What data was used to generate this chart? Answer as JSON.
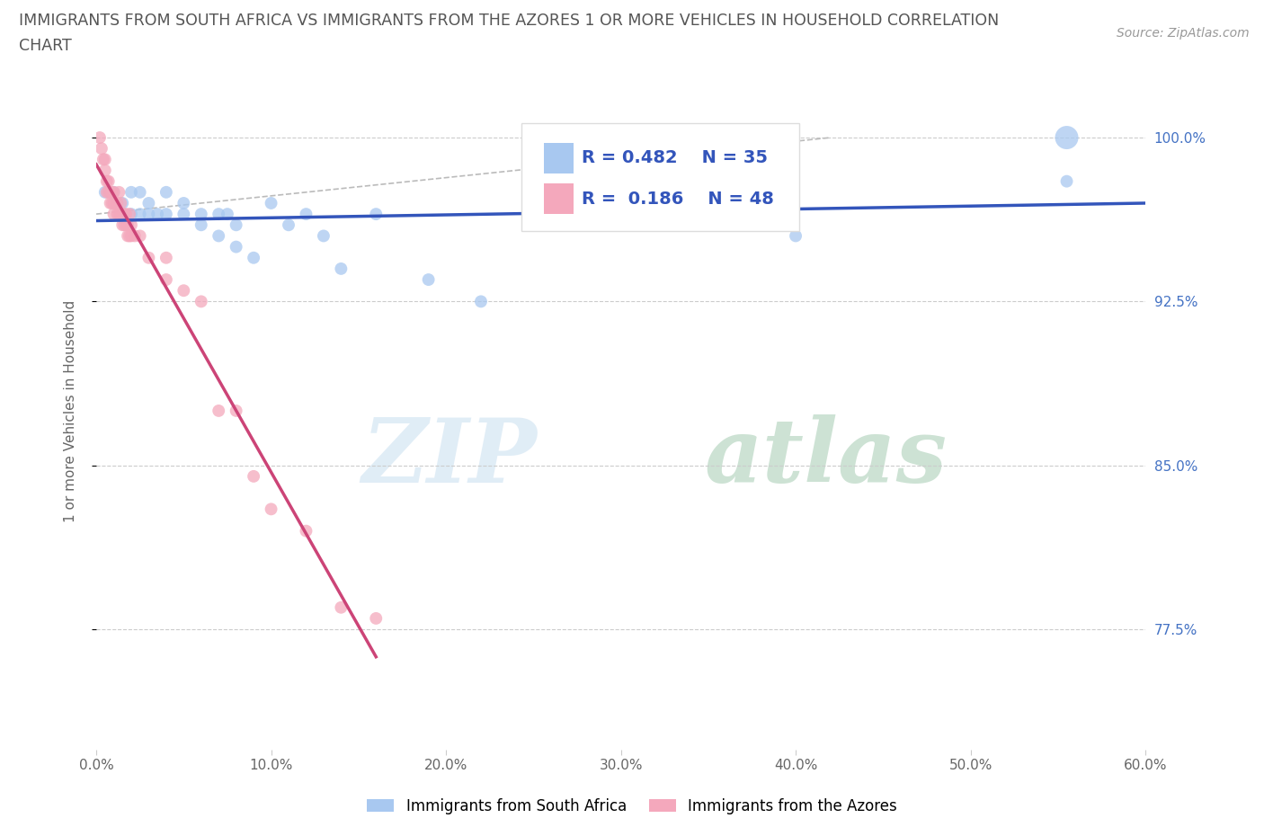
{
  "title_line1": "IMMIGRANTS FROM SOUTH AFRICA VS IMMIGRANTS FROM THE AZORES 1 OR MORE VEHICLES IN HOUSEHOLD CORRELATION",
  "title_line2": "CHART",
  "source": "Source: ZipAtlas.com",
  "xlabel_bottom": "Immigrants from South Africa",
  "ylabel": "1 or more Vehicles in Household",
  "xlabel_right": "Immigrants from the Azores",
  "x_min": 0.0,
  "x_max": 0.6,
  "y_min": 0.72,
  "y_max": 1.03,
  "x_ticks": [
    0.0,
    0.1,
    0.2,
    0.3,
    0.4,
    0.5,
    0.6
  ],
  "x_tick_labels": [
    "0.0%",
    "10.0%",
    "20.0%",
    "30.0%",
    "40.0%",
    "50.0%",
    "60.0%"
  ],
  "y_ticks": [
    0.775,
    0.85,
    0.925,
    1.0
  ],
  "y_tick_labels": [
    "77.5%",
    "85.0%",
    "92.5%",
    "100.0%"
  ],
  "blue_color": "#a8c8f0",
  "pink_color": "#f4a8bc",
  "blue_line_color": "#3355bb",
  "pink_line_color": "#cc4477",
  "R_blue": 0.482,
  "N_blue": 35,
  "R_pink": 0.186,
  "N_pink": 48,
  "watermark_zip": "ZIP",
  "watermark_atlas": "atlas",
  "blue_scatter_x": [
    0.005,
    0.01,
    0.015,
    0.02,
    0.02,
    0.025,
    0.025,
    0.03,
    0.03,
    0.035,
    0.04,
    0.04,
    0.05,
    0.05,
    0.06,
    0.06,
    0.07,
    0.07,
    0.075,
    0.08,
    0.08,
    0.09,
    0.1,
    0.11,
    0.12,
    0.13,
    0.14,
    0.16,
    0.19,
    0.22,
    0.28,
    0.28,
    0.4,
    0.555,
    0.555
  ],
  "blue_scatter_y": [
    0.975,
    0.975,
    0.97,
    0.975,
    0.965,
    0.975,
    0.965,
    0.97,
    0.965,
    0.965,
    0.975,
    0.965,
    0.97,
    0.965,
    0.965,
    0.96,
    0.965,
    0.955,
    0.965,
    0.96,
    0.95,
    0.945,
    0.97,
    0.96,
    0.965,
    0.955,
    0.94,
    0.965,
    0.935,
    0.925,
    0.965,
    0.97,
    0.955,
    0.98,
    1.0
  ],
  "blue_marker_sizes": [
    100,
    100,
    100,
    100,
    100,
    100,
    100,
    100,
    100,
    100,
    100,
    100,
    100,
    100,
    100,
    100,
    100,
    100,
    100,
    100,
    100,
    100,
    100,
    100,
    100,
    100,
    100,
    100,
    100,
    100,
    100,
    100,
    100,
    100,
    350
  ],
  "pink_scatter_x": [
    0.002,
    0.003,
    0.004,
    0.005,
    0.005,
    0.006,
    0.006,
    0.007,
    0.007,
    0.008,
    0.008,
    0.009,
    0.009,
    0.01,
    0.01,
    0.01,
    0.012,
    0.012,
    0.013,
    0.013,
    0.014,
    0.014,
    0.015,
    0.015,
    0.016,
    0.016,
    0.017,
    0.017,
    0.018,
    0.018,
    0.019,
    0.019,
    0.02,
    0.02,
    0.022,
    0.025,
    0.03,
    0.04,
    0.04,
    0.05,
    0.06,
    0.07,
    0.08,
    0.09,
    0.1,
    0.12,
    0.14,
    0.16
  ],
  "pink_scatter_y": [
    1.0,
    0.995,
    0.99,
    0.985,
    0.99,
    0.98,
    0.975,
    0.98,
    0.975,
    0.975,
    0.97,
    0.975,
    0.97,
    0.975,
    0.97,
    0.965,
    0.97,
    0.965,
    0.975,
    0.965,
    0.97,
    0.965,
    0.965,
    0.96,
    0.965,
    0.96,
    0.965,
    0.96,
    0.96,
    0.955,
    0.965,
    0.955,
    0.96,
    0.955,
    0.955,
    0.955,
    0.945,
    0.945,
    0.935,
    0.93,
    0.925,
    0.875,
    0.875,
    0.845,
    0.83,
    0.82,
    0.785,
    0.78
  ],
  "pink_marker_sizes": [
    100,
    100,
    100,
    100,
    100,
    100,
    100,
    100,
    100,
    100,
    100,
    100,
    100,
    100,
    100,
    100,
    100,
    100,
    100,
    100,
    100,
    100,
    100,
    100,
    100,
    100,
    100,
    100,
    100,
    100,
    100,
    100,
    100,
    100,
    100,
    100,
    100,
    100,
    100,
    100,
    100,
    100,
    100,
    100,
    100,
    100,
    100,
    100
  ]
}
